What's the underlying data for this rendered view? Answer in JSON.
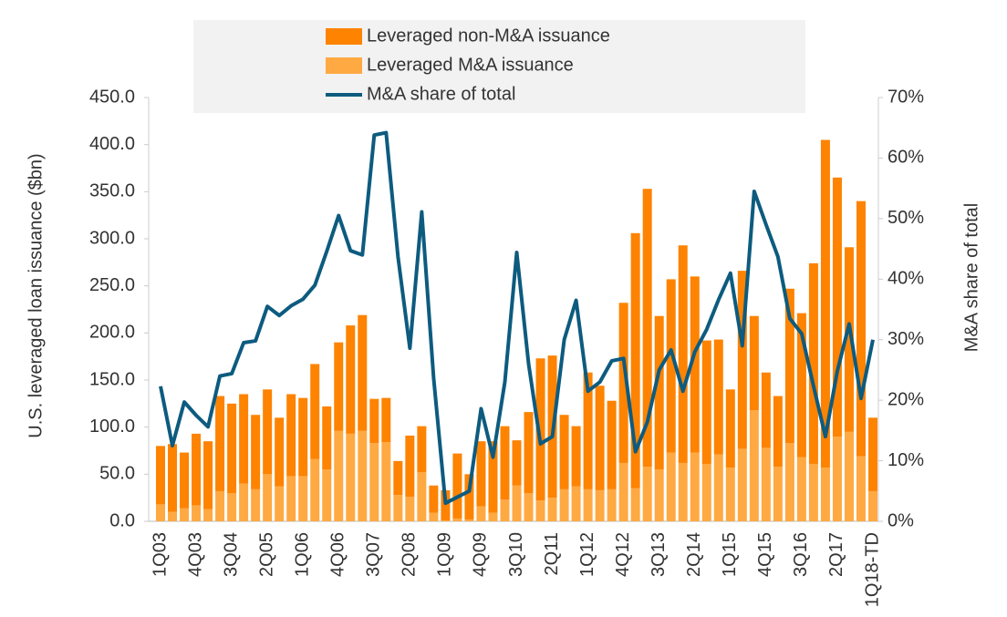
{
  "chart_data": {
    "type": "bar",
    "ylabel": "U.S. leveraged loan issuance ($bn)",
    "y2label": "M&A share of total",
    "categories": [
      "1Q03",
      null,
      null,
      "4Q03",
      null,
      null,
      "3Q04",
      null,
      null,
      "2Q05",
      null,
      null,
      "1Q06",
      null,
      null,
      "4Q06",
      null,
      null,
      "3Q07",
      null,
      null,
      "2Q08",
      null,
      null,
      "1Q09",
      null,
      null,
      "4Q09",
      null,
      null,
      "3Q10",
      null,
      null,
      "2Q11",
      null,
      null,
      "1Q12",
      null,
      null,
      "4Q12",
      null,
      null,
      "3Q13",
      null,
      null,
      "2Q14",
      null,
      null,
      "1Q15",
      null,
      null,
      "4Q15",
      null,
      null,
      "3Q16",
      null,
      null,
      "2Q17",
      null,
      null,
      "1Q18-TD"
    ],
    "series": [
      {
        "name": "Leveraged non-M&A issuance",
        "color": "#fd8300",
        "values": [
          62,
          72,
          59,
          76,
          72,
          101,
          95,
          95,
          79,
          90,
          73,
          87,
          83,
          101,
          67,
          94,
          115,
          123,
          47,
          47,
          36,
          65,
          49,
          29,
          32,
          69,
          48,
          69,
          76,
          78,
          48,
          86,
          151,
          151,
          79,
          64,
          124,
          111,
          94,
          170,
          271,
          295,
          163,
          184,
          231,
          187,
          131,
          122,
          83,
          189,
          100,
          80,
          75,
          164,
          153,
          213,
          348,
          275,
          196,
          271,
          78
        ]
      },
      {
        "name": "Leveraged M&A issuance",
        "color": "#ffa943",
        "values": [
          18,
          10,
          14,
          17,
          13,
          32,
          30,
          40,
          34,
          50,
          37,
          48,
          48,
          66,
          55,
          96,
          93,
          96,
          83,
          84,
          28,
          26,
          52,
          9,
          1,
          3,
          2,
          16,
          9,
          23,
          38,
          30,
          22,
          25,
          34,
          37,
          34,
          33,
          34,
          62,
          35,
          58,
          55,
          73,
          62,
          73,
          61,
          71,
          57,
          77,
          118,
          78,
          58,
          83,
          68,
          61,
          57,
          90,
          95,
          69,
          32
        ]
      },
      {
        "name": "M&A share of total",
        "color": "#0d5b7f",
        "axis": "y2",
        "type": "line",
        "values": [
          22.3,
          12.5,
          19.7,
          17.5,
          15.6,
          24,
          24.4,
          29.5,
          29.8,
          35.5,
          34,
          35.6,
          36.7,
          39,
          44.6,
          50.5,
          44.7,
          44,
          63.8,
          64.2,
          43.7,
          28.6,
          51.1,
          23.7,
          3,
          4,
          5,
          18.6,
          10.6,
          23,
          44.4,
          26,
          12.8,
          14,
          30,
          36.5,
          21.5,
          23,
          26.5,
          26.9,
          11.5,
          16.4,
          25,
          28.3,
          21.5,
          28,
          31.7,
          36.6,
          41,
          29,
          54.5,
          49,
          43.7,
          33.5,
          31,
          22.3,
          14,
          24.8,
          32.6,
          20.3,
          30
        ]
      }
    ],
    "ylim": [
      0,
      450
    ],
    "yticks": [
      {
        "value": 0,
        "label": "0.0"
      },
      {
        "value": 50,
        "label": "50.0"
      },
      {
        "value": 100,
        "label": "100.0"
      },
      {
        "value": 150,
        "label": "150.0"
      },
      {
        "value": 200,
        "label": "200.0"
      },
      {
        "value": 250,
        "label": "250.0"
      },
      {
        "value": 300,
        "label": "300.0"
      },
      {
        "value": 350,
        "label": "350.0"
      },
      {
        "value": 400,
        "label": "400.0"
      },
      {
        "value": 450,
        "label": "450.0"
      }
    ],
    "y2lim": [
      0,
      70
    ],
    "y2ticks": [
      {
        "value": 0,
        "label": "0%"
      },
      {
        "value": 10,
        "label": "10%"
      },
      {
        "value": 20,
        "label": "20%"
      },
      {
        "value": 30,
        "label": "30%"
      },
      {
        "value": 40,
        "label": "40%"
      },
      {
        "value": 50,
        "label": "50%"
      },
      {
        "value": 60,
        "label": "60%"
      },
      {
        "value": 70,
        "label": "70%"
      }
    ],
    "legend": "top"
  }
}
